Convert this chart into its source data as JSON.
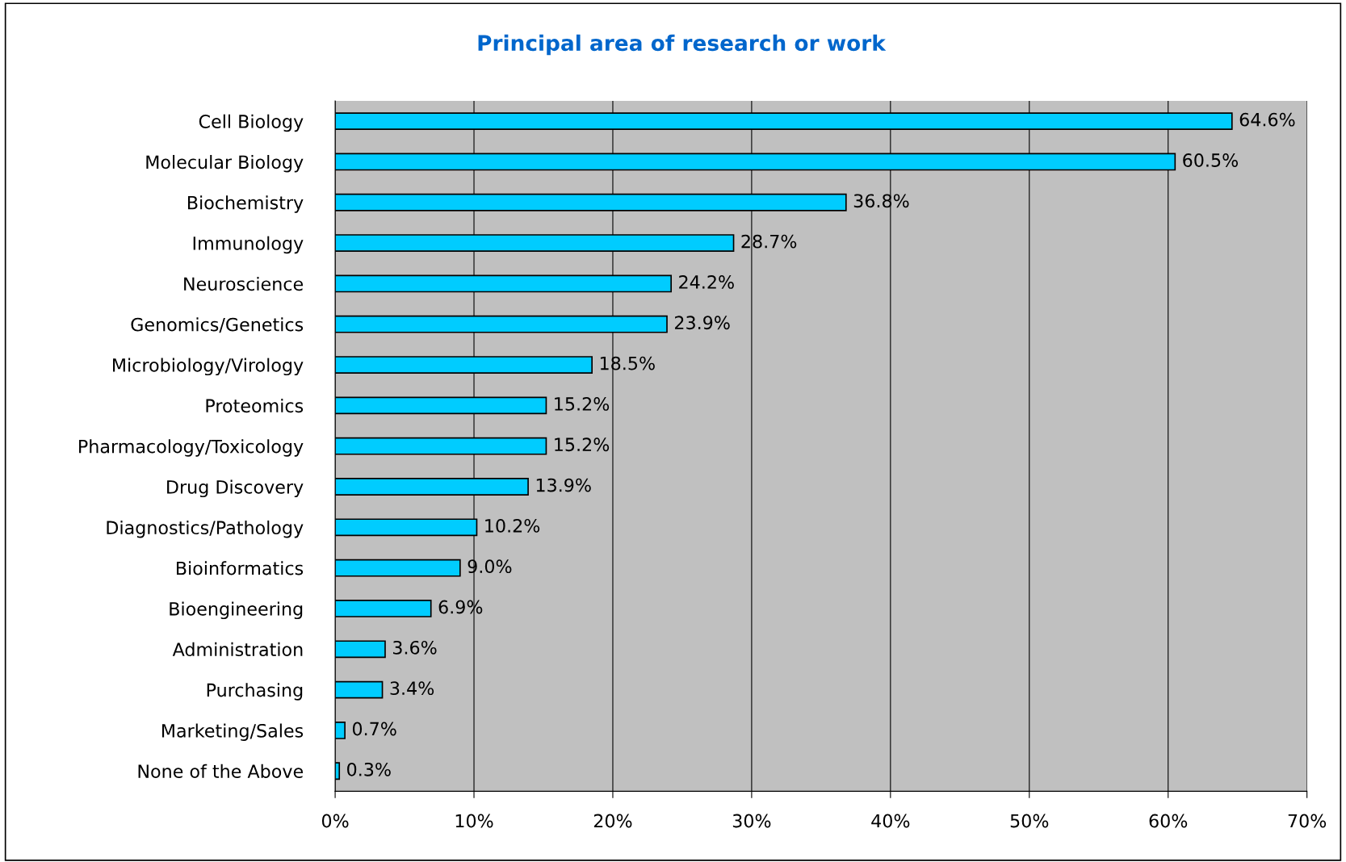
{
  "chart_data": {
    "type": "bar",
    "orientation": "horizontal",
    "title": "Principal area of research or work",
    "categories": [
      "Cell Biology",
      "Molecular Biology",
      "Biochemistry",
      "Immunology",
      "Neuroscience",
      "Genomics/Genetics",
      "Microbiology/Virology",
      "Proteomics",
      "Pharmacology/Toxicology",
      "Drug Discovery",
      "Diagnostics/Pathology",
      "Bioinformatics",
      "Bioengineering",
      "Administration",
      "Purchasing",
      "Marketing/Sales",
      "None of the Above"
    ],
    "values": [
      64.6,
      60.5,
      36.8,
      28.7,
      24.2,
      23.9,
      18.5,
      15.2,
      15.2,
      13.9,
      10.2,
      9.0,
      6.9,
      3.6,
      3.4,
      0.7,
      0.3
    ],
    "value_labels": [
      "64.6%",
      "60.5%",
      "36.8%",
      "28.7%",
      "24.2%",
      "23.9%",
      "18.5%",
      "15.2%",
      "15.2%",
      "13.9%",
      "10.2%",
      "9.0%",
      "6.9%",
      "3.6%",
      "3.4%",
      "0.7%",
      "0.3%"
    ],
    "color": "#00ccff",
    "xlim": [
      0,
      70
    ],
    "xticks": [
      {
        "value": 0,
        "label": "0%"
      },
      {
        "value": 10,
        "label": "10%"
      },
      {
        "value": 20,
        "label": "20%"
      },
      {
        "value": 30,
        "label": "30%"
      },
      {
        "value": 40,
        "label": "40%"
      },
      {
        "value": 50,
        "label": "50%"
      },
      {
        "value": 60,
        "label": "60%"
      },
      {
        "value": 70,
        "label": "70%"
      }
    ],
    "grid": "x",
    "legend": false
  }
}
